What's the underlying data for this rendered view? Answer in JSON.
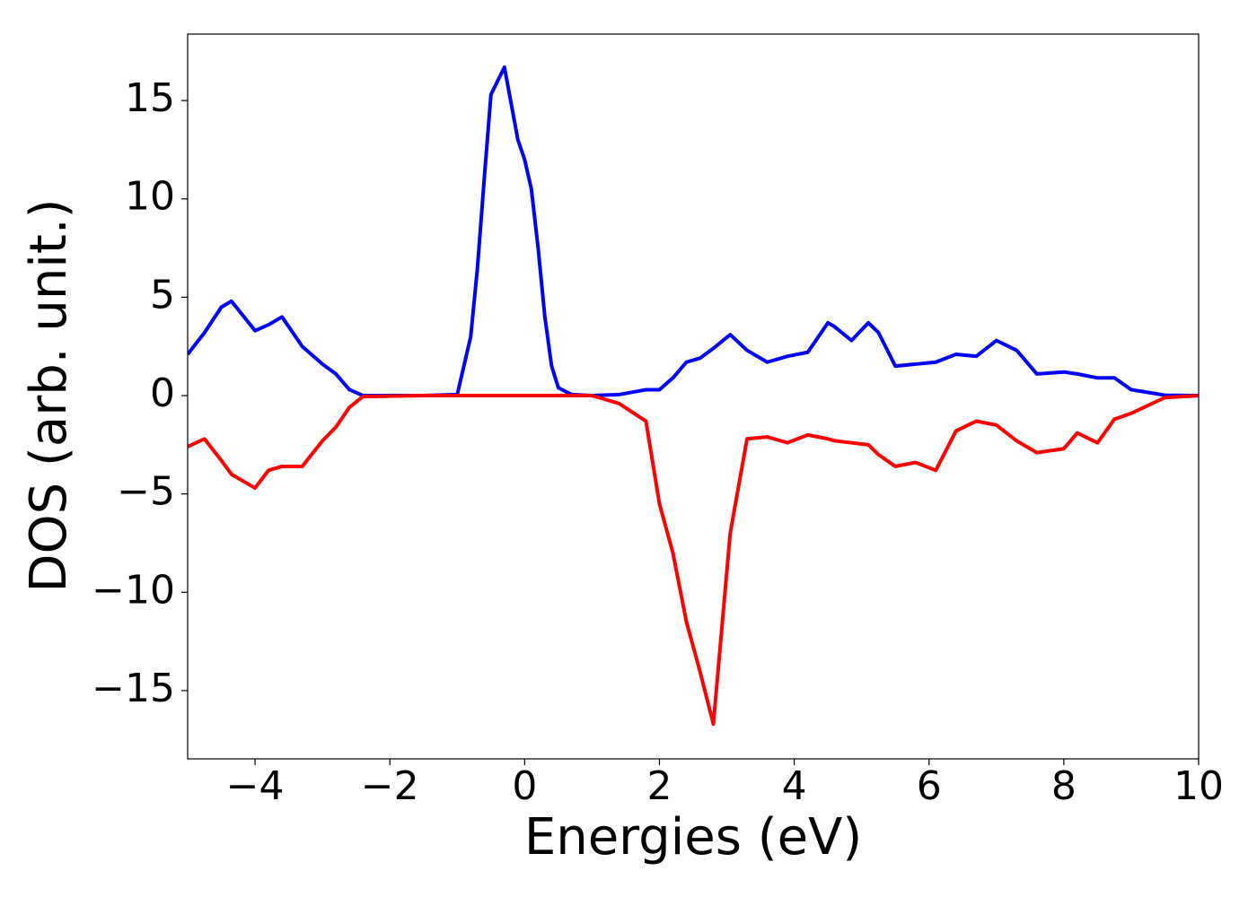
{
  "chart_data": {
    "type": "line",
    "x_label": "Energies (eV)",
    "y_label": "DOS (arb. unit.)",
    "x": [
      -5,
      -4.75,
      -4.5,
      -4.35,
      -4,
      -3.8,
      -3.6,
      -3.3,
      -3,
      -2.8,
      -2.6,
      -2.4,
      -1.5,
      -1,
      -0.8,
      -0.7,
      -0.6,
      -0.5,
      -0.3,
      -0.1,
      0,
      0.1,
      0.2,
      0.3,
      0.4,
      0.5,
      0.7,
      1,
      1.4,
      1.8,
      2,
      2.2,
      2.4,
      2.6,
      2.8,
      3.05,
      3.3,
      3.6,
      3.9,
      4.2,
      4.5,
      4.6,
      4.85,
      5.1,
      5.25,
      5.5,
      5.8,
      6.1,
      6.4,
      6.7,
      7,
      7.3,
      7.6,
      8,
      8.2,
      8.5,
      8.75,
      9,
      9.5,
      10
    ],
    "series": [
      {
        "color": "#0000ff",
        "values": [
          2.1,
          3.2,
          4.5,
          4.8,
          3.3,
          3.6,
          4.0,
          2.5,
          1.6,
          1.1,
          0.3,
          0.0,
          0.0,
          0.05,
          3.0,
          6.5,
          11.0,
          15.3,
          16.7,
          13.0,
          12.0,
          10.5,
          7.5,
          4.0,
          1.5,
          0.4,
          0.05,
          0,
          0.05,
          0.3,
          0.3,
          0.9,
          1.7,
          1.9,
          2.4,
          3.1,
          2.3,
          1.7,
          2.0,
          2.2,
          3.7,
          3.5,
          2.8,
          3.7,
          3.2,
          1.5,
          1.6,
          1.7,
          2.1,
          2.0,
          2.8,
          2.3,
          1.1,
          1.2,
          1.1,
          0.9,
          0.9,
          0.3,
          0.02,
          0
        ]
      },
      {
        "color": "#ff0000",
        "values": [
          -2.6,
          -2.2,
          -3.3,
          -4.0,
          -4.7,
          -3.8,
          -3.6,
          -3.6,
          -2.3,
          -1.6,
          -0.6,
          -0.05,
          0,
          0,
          0,
          0,
          0,
          0,
          0,
          0,
          0,
          0,
          0,
          0,
          0,
          0,
          0,
          0,
          -0.4,
          -1.3,
          -5.5,
          -8.0,
          -11.5,
          -14.0,
          -16.7,
          -7.0,
          -2.2,
          -2.1,
          -2.4,
          -2.0,
          -2.2,
          -2.3,
          -2.4,
          -2.5,
          -3.0,
          -3.6,
          -3.4,
          -3.8,
          -1.8,
          -1.3,
          -1.5,
          -2.3,
          -2.9,
          -2.7,
          -1.9,
          -2.4,
          -1.2,
          -0.9,
          -0.1,
          0
        ]
      }
    ],
    "xlim": [
      -5,
      10
    ],
    "xticks": [
      {
        "value": -4,
        "label": "−4"
      },
      {
        "value": -2,
        "label": "−2"
      },
      0,
      2,
      4,
      6,
      8,
      10
    ],
    "ylim": [
      -18.47,
      18.38
    ],
    "yticks": [
      {
        "value": -15,
        "label": "−15"
      },
      {
        "value": -10,
        "label": "−10"
      },
      {
        "value": -5,
        "label": "−5"
      },
      0,
      5,
      10,
      15
    ],
    "grid": false
  }
}
